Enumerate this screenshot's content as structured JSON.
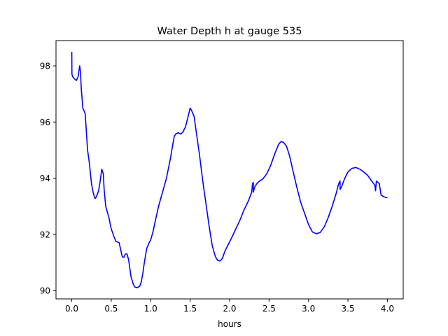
{
  "chart_data": {
    "type": "line",
    "title": "Water Depth h at gauge 535",
    "xlabel": "hours",
    "ylabel": "",
    "xlim": [
      -0.2,
      4.2
    ],
    "ylim": [
      89.7,
      98.9
    ],
    "xticks": [
      0.0,
      0.5,
      1.0,
      1.5,
      2.0,
      2.5,
      3.0,
      3.5,
      4.0
    ],
    "xtick_labels": [
      "0.0",
      "0.5",
      "1.0",
      "1.5",
      "2.0",
      "2.5",
      "3.0",
      "3.5",
      "4.0"
    ],
    "yticks": [
      90,
      92,
      94,
      96,
      98
    ],
    "ytick_labels": [
      "90",
      "92",
      "94",
      "96",
      "98"
    ],
    "grid": false,
    "series": [
      {
        "color": "#0000ff",
        "x": [
          0.0,
          0.002,
          0.01,
          0.03,
          0.06,
          0.08,
          0.1,
          0.11,
          0.12,
          0.14,
          0.17,
          0.2,
          0.22,
          0.25,
          0.27,
          0.29,
          0.3,
          0.32,
          0.34,
          0.36,
          0.38,
          0.4,
          0.41,
          0.43,
          0.45,
          0.47,
          0.5,
          0.53,
          0.56,
          0.6,
          0.62,
          0.64,
          0.66,
          0.68,
          0.7,
          0.72,
          0.75,
          0.78,
          0.8,
          0.83,
          0.86,
          0.88,
          0.9,
          0.92,
          0.95,
          0.98,
          1.0,
          1.03,
          1.06,
          1.1,
          1.15,
          1.2,
          1.25,
          1.28,
          1.3,
          1.32,
          1.35,
          1.38,
          1.41,
          1.44,
          1.47,
          1.5,
          1.52,
          1.55,
          1.58,
          1.62,
          1.66,
          1.7,
          1.74,
          1.78,
          1.82,
          1.85,
          1.88,
          1.91,
          1.94,
          1.98,
          2.03,
          2.08,
          2.13,
          2.18,
          2.24,
          2.28,
          2.29,
          2.3,
          2.3,
          2.32,
          2.35,
          2.38,
          2.42,
          2.47,
          2.52,
          2.57,
          2.62,
          2.65,
          2.68,
          2.72,
          2.76,
          2.8,
          2.85,
          2.9,
          2.95,
          3.0,
          3.05,
          3.1,
          3.15,
          3.2,
          3.25,
          3.3,
          3.35,
          3.38,
          3.4,
          3.4,
          3.42,
          3.46,
          3.5,
          3.55,
          3.6,
          3.65,
          3.7,
          3.75,
          3.8,
          3.84,
          3.85,
          3.86,
          3.9,
          3.9,
          3.92,
          3.96,
          4.0
        ],
        "y": [
          98.5,
          97.7,
          97.62,
          97.55,
          97.48,
          97.62,
          98.0,
          97.8,
          97.2,
          96.5,
          96.3,
          95.0,
          94.6,
          93.8,
          93.5,
          93.3,
          93.28,
          93.4,
          93.55,
          93.9,
          94.32,
          94.15,
          93.6,
          93.0,
          92.8,
          92.6,
          92.2,
          91.95,
          91.75,
          91.7,
          91.45,
          91.2,
          91.18,
          91.3,
          91.3,
          91.1,
          90.5,
          90.22,
          90.12,
          90.1,
          90.15,
          90.3,
          90.6,
          91.0,
          91.5,
          91.7,
          91.8,
          92.1,
          92.5,
          93.0,
          93.5,
          94.0,
          94.7,
          95.2,
          95.5,
          95.58,
          95.62,
          95.57,
          95.65,
          95.82,
          96.15,
          96.5,
          96.4,
          96.2,
          95.6,
          94.8,
          93.9,
          93.1,
          92.3,
          91.6,
          91.2,
          91.07,
          91.05,
          91.15,
          91.4,
          91.62,
          91.9,
          92.2,
          92.5,
          92.85,
          93.2,
          93.5,
          93.8,
          93.85,
          93.5,
          93.7,
          93.82,
          93.9,
          93.97,
          94.15,
          94.45,
          94.85,
          95.2,
          95.3,
          95.28,
          95.15,
          94.8,
          94.3,
          93.7,
          93.15,
          92.75,
          92.35,
          92.08,
          92.02,
          92.07,
          92.27,
          92.6,
          93.0,
          93.45,
          93.78,
          93.9,
          93.6,
          93.7,
          94.0,
          94.22,
          94.35,
          94.38,
          94.32,
          94.22,
          94.1,
          93.9,
          93.75,
          93.55,
          93.9,
          93.8,
          93.75,
          93.4,
          93.33,
          93.3
        ]
      }
    ]
  }
}
